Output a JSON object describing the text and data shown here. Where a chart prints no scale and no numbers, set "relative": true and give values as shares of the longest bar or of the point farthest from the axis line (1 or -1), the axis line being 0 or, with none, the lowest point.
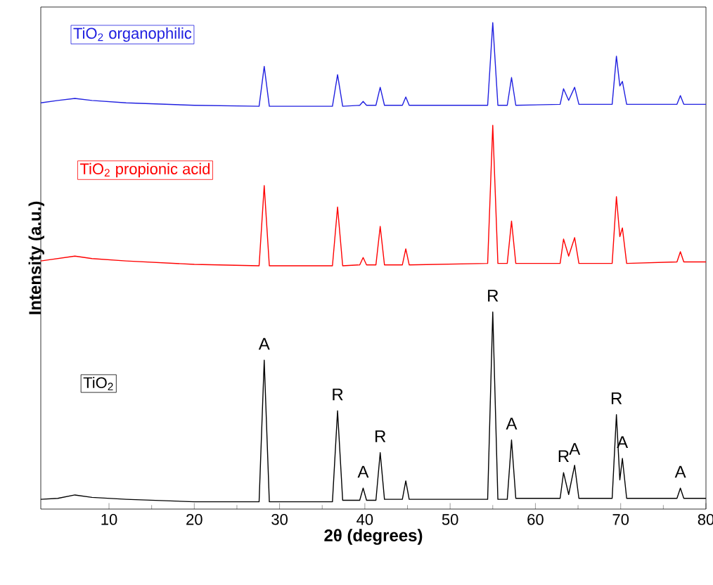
{
  "chart_data": {
    "type": "line",
    "relative": true,
    "xlabel": "2θ (degrees)",
    "ylabel": "Intensity (a.u.)",
    "xlim": [
      2,
      80
    ],
    "xticks": [
      10,
      20,
      30,
      40,
      50,
      60,
      70,
      80
    ],
    "x": [
      2,
      4,
      6,
      8,
      12,
      20,
      27.6,
      28.2,
      28.8,
      36.2,
      36.8,
      37.4,
      39.4,
      39.8,
      40.2,
      41.3,
      41.8,
      42.3,
      44.4,
      44.8,
      45.2,
      54.4,
      55,
      55.6,
      56.7,
      57.2,
      57.7,
      62.9,
      63.3,
      63.9,
      64.6,
      65.1,
      69.0,
      69.5,
      69.9,
      70.2,
      70.7,
      76.6,
      77,
      77.4,
      80
    ],
    "series": [
      {
        "name": "TiO$_{2}$ organophilic",
        "color": "#2020e0",
        "values": [
          0.835,
          0.84,
          0.844,
          0.84,
          0.835,
          0.83,
          0.828,
          0.91,
          0.828,
          0.828,
          0.893,
          0.828,
          0.83,
          0.838,
          0.83,
          0.83,
          0.867,
          0.83,
          0.83,
          0.847,
          0.83,
          0.83,
          1.0,
          0.83,
          0.83,
          0.887,
          0.83,
          0.832,
          0.864,
          0.84,
          0.867,
          0.832,
          0.832,
          0.931,
          0.87,
          0.879,
          0.832,
          0.832,
          0.85,
          0.832,
          0.832
        ]
      },
      {
        "name": "TiO$_{2}$ propionic acid",
        "color": "#ff0000",
        "values": [
          0.51,
          0.515,
          0.52,
          0.515,
          0.51,
          0.503,
          0.5,
          0.665,
          0.5,
          0.5,
          0.621,
          0.5,
          0.502,
          0.517,
          0.502,
          0.502,
          0.581,
          0.502,
          0.502,
          0.535,
          0.502,
          0.505,
          0.789,
          0.505,
          0.505,
          0.592,
          0.505,
          0.505,
          0.555,
          0.52,
          0.558,
          0.505,
          0.505,
          0.642,
          0.56,
          0.578,
          0.505,
          0.508,
          0.529,
          0.508,
          0.508
        ]
      },
      {
        "name": "TiO$_{2}$",
        "color": "#000000",
        "values": [
          0.02,
          0.022,
          0.029,
          0.024,
          0.02,
          0.015,
          0.015,
          0.306,
          0.015,
          0.015,
          0.202,
          0.018,
          0.018,
          0.043,
          0.018,
          0.018,
          0.116,
          0.02,
          0.02,
          0.058,
          0.02,
          0.02,
          0.405,
          0.02,
          0.02,
          0.142,
          0.022,
          0.022,
          0.075,
          0.03,
          0.09,
          0.022,
          0.022,
          0.194,
          0.06,
          0.104,
          0.022,
          0.022,
          0.043,
          0.022,
          0.022
        ]
      }
    ],
    "annotations": [
      {
        "text": "A",
        "x": 28.2,
        "y": 0.306
      },
      {
        "text": "R",
        "x": 36.8,
        "y": 0.202
      },
      {
        "text": "A",
        "x": 39.8,
        "y": 0.043
      },
      {
        "text": "R",
        "x": 41.8,
        "y": 0.116
      },
      {
        "text": "R",
        "x": 55,
        "y": 0.405
      },
      {
        "text": "A",
        "x": 57.2,
        "y": 0.142
      },
      {
        "text": "R",
        "x": 63.3,
        "y": 0.075
      },
      {
        "text": "A",
        "x": 64.6,
        "y": 0.09
      },
      {
        "text": "R",
        "x": 69.5,
        "y": 0.194
      },
      {
        "text": "A",
        "x": 70.2,
        "y": 0.104
      },
      {
        "text": "A",
        "x": 77,
        "y": 0.043
      }
    ]
  }
}
